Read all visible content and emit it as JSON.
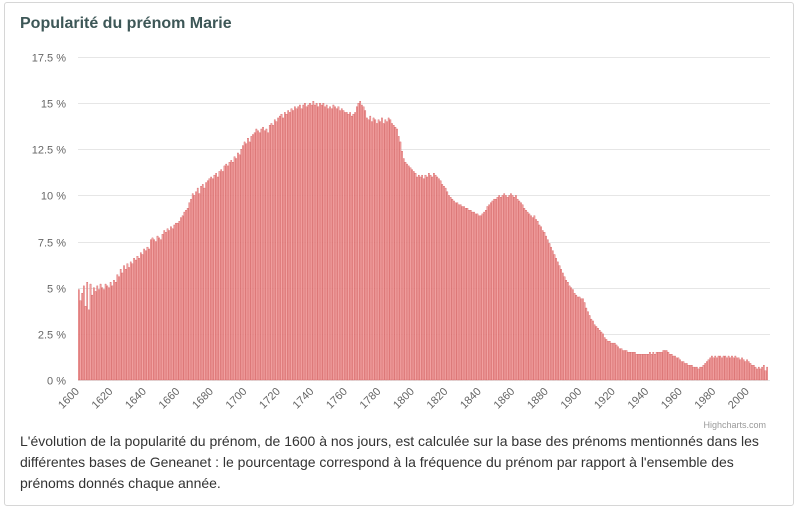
{
  "credits": "Highcharts.com",
  "caption": "L'évolution de la popularité du prénom, de 1600 à nos jours, est calculée sur la base des prénoms mentionnés dans les différentes bases de Geneanet : le pourcentage correspond à la fréquence du prénom par rapport à l'ensemble des prénoms donnés chaque année.",
  "colors": {
    "bar_fill": "#f2a3a3",
    "bar_border": "#cc4a4a",
    "gridline": "#e6e6e6"
  },
  "chart_data": {
    "type": "bar",
    "title": "Popularité du prénom Marie",
    "xlim": [
      1600,
      2011
    ],
    "ylim": [
      0,
      17.5
    ],
    "grid": "horizontal",
    "legend": "none",
    "yticks": [
      {
        "value": 0,
        "label": "0 %"
      },
      {
        "value": 2.5,
        "label": "2.5 %"
      },
      {
        "value": 5,
        "label": "5 %"
      },
      {
        "value": 7.5,
        "label": "7.5 %"
      },
      {
        "value": 10,
        "label": "10 %"
      },
      {
        "value": 12.5,
        "label": "12.5 %"
      },
      {
        "value": 15,
        "label": "15 %"
      },
      {
        "value": 17.5,
        "label": "17.5 %"
      }
    ],
    "xticks": [
      {
        "value": 1600,
        "label": "1600"
      },
      {
        "value": 1620,
        "label": "1620"
      },
      {
        "value": 1640,
        "label": "1640"
      },
      {
        "value": 1660,
        "label": "1660"
      },
      {
        "value": 1680,
        "label": "1680"
      },
      {
        "value": 1700,
        "label": "1700"
      },
      {
        "value": 1720,
        "label": "1720"
      },
      {
        "value": 1740,
        "label": "1740"
      },
      {
        "value": 1760,
        "label": "1760"
      },
      {
        "value": 1780,
        "label": "1780"
      },
      {
        "value": 1800,
        "label": "1800"
      },
      {
        "value": 1820,
        "label": "1820"
      },
      {
        "value": 1840,
        "label": "1840"
      },
      {
        "value": 1860,
        "label": "1860"
      },
      {
        "value": 1880,
        "label": "1880"
      },
      {
        "value": 1900,
        "label": "1900"
      },
      {
        "value": 1920,
        "label": "1920"
      },
      {
        "value": 1940,
        "label": "1940"
      },
      {
        "value": 1960,
        "label": "1960"
      },
      {
        "value": 1980,
        "label": "1980"
      },
      {
        "value": 2000,
        "label": "2000"
      }
    ],
    "x": [
      1600,
      1601,
      1602,
      1603,
      1604,
      1605,
      1606,
      1607,
      1608,
      1609,
      1610,
      1611,
      1612,
      1613,
      1614,
      1615,
      1616,
      1617,
      1618,
      1619,
      1620,
      1621,
      1622,
      1623,
      1624,
      1625,
      1626,
      1627,
      1628,
      1629,
      1630,
      1631,
      1632,
      1633,
      1634,
      1635,
      1636,
      1637,
      1638,
      1639,
      1640,
      1641,
      1642,
      1643,
      1644,
      1645,
      1646,
      1647,
      1648,
      1649,
      1650,
      1651,
      1652,
      1653,
      1654,
      1655,
      1656,
      1657,
      1658,
      1659,
      1660,
      1661,
      1662,
      1663,
      1664,
      1665,
      1666,
      1667,
      1668,
      1669,
      1670,
      1671,
      1672,
      1673,
      1674,
      1675,
      1676,
      1677,
      1678,
      1679,
      1680,
      1681,
      1682,
      1683,
      1684,
      1685,
      1686,
      1687,
      1688,
      1689,
      1690,
      1691,
      1692,
      1693,
      1694,
      1695,
      1696,
      1697,
      1698,
      1699,
      1700,
      1701,
      1702,
      1703,
      1704,
      1705,
      1706,
      1707,
      1708,
      1709,
      1710,
      1711,
      1712,
      1713,
      1714,
      1715,
      1716,
      1717,
      1718,
      1719,
      1720,
      1721,
      1722,
      1723,
      1724,
      1725,
      1726,
      1727,
      1728,
      1729,
      1730,
      1731,
      1732,
      1733,
      1734,
      1735,
      1736,
      1737,
      1738,
      1739,
      1740,
      1741,
      1742,
      1743,
      1744,
      1745,
      1746,
      1747,
      1748,
      1749,
      1750,
      1751,
      1752,
      1753,
      1754,
      1755,
      1756,
      1757,
      1758,
      1759,
      1760,
      1761,
      1762,
      1763,
      1764,
      1765,
      1766,
      1767,
      1768,
      1769,
      1770,
      1771,
      1772,
      1773,
      1774,
      1775,
      1776,
      1777,
      1778,
      1779,
      1780,
      1781,
      1782,
      1783,
      1784,
      1785,
      1786,
      1787,
      1788,
      1789,
      1790,
      1791,
      1792,
      1793,
      1794,
      1795,
      1796,
      1797,
      1798,
      1799,
      1800,
      1801,
      1802,
      1803,
      1804,
      1805,
      1806,
      1807,
      1808,
      1809,
      1810,
      1811,
      1812,
      1813,
      1814,
      1815,
      1816,
      1817,
      1818,
      1819,
      1820,
      1821,
      1822,
      1823,
      1824,
      1825,
      1826,
      1827,
      1828,
      1829,
      1830,
      1831,
      1832,
      1833,
      1834,
      1835,
      1836,
      1837,
      1838,
      1839,
      1840,
      1841,
      1842,
      1843,
      1844,
      1845,
      1846,
      1847,
      1848,
      1849,
      1850,
      1851,
      1852,
      1853,
      1854,
      1855,
      1856,
      1857,
      1858,
      1859,
      1860,
      1861,
      1862,
      1863,
      1864,
      1865,
      1866,
      1867,
      1868,
      1869,
      1870,
      1871,
      1872,
      1873,
      1874,
      1875,
      1876,
      1877,
      1878,
      1879,
      1880,
      1881,
      1882,
      1883,
      1884,
      1885,
      1886,
      1887,
      1888,
      1889,
      1890,
      1891,
      1892,
      1893,
      1894,
      1895,
      1896,
      1897,
      1898,
      1899,
      1900,
      1901,
      1902,
      1903,
      1904,
      1905,
      1906,
      1907,
      1908,
      1909,
      1910,
      1911,
      1912,
      1913,
      1914,
      1915,
      1916,
      1917,
      1918,
      1919,
      1920,
      1921,
      1922,
      1923,
      1924,
      1925,
      1926,
      1927,
      1928,
      1929,
      1930,
      1931,
      1932,
      1933,
      1934,
      1935,
      1936,
      1937,
      1938,
      1939,
      1940,
      1941,
      1942,
      1943,
      1944,
      1945,
      1946,
      1947,
      1948,
      1949,
      1950,
      1951,
      1952,
      1953,
      1954,
      1955,
      1956,
      1957,
      1958,
      1959,
      1960,
      1961,
      1962,
      1963,
      1964,
      1965,
      1966,
      1967,
      1968,
      1969,
      1970,
      1971,
      1972,
      1973,
      1974,
      1975,
      1976,
      1977,
      1978,
      1979,
      1980,
      1981,
      1982,
      1983,
      1984,
      1985,
      1986,
      1987,
      1988,
      1989,
      1990,
      1991,
      1992,
      1993,
      1994,
      1995,
      1996,
      1997,
      1998,
      1999,
      2000,
      2001,
      2002,
      2003,
      2004,
      2005,
      2006,
      2007,
      2008,
      2009,
      2010,
      2011
    ],
    "values": [
      4.9,
      4.3,
      4.7,
      5.1,
      4.0,
      5.3,
      3.8,
      5.2,
      4.6,
      5.0,
      4.8,
      5.1,
      4.9,
      5.2,
      5.0,
      4.9,
      5.2,
      5.1,
      5.0,
      5.3,
      5.1,
      5.4,
      5.3,
      5.7,
      5.6,
      6.0,
      5.8,
      6.2,
      6.0,
      6.3,
      6.1,
      6.4,
      6.3,
      6.6,
      6.5,
      6.7,
      6.6,
      6.9,
      6.8,
      7.1,
      7.0,
      7.2,
      7.1,
      7.6,
      7.7,
      7.6,
      7.5,
      7.8,
      7.7,
      7.6,
      7.9,
      8.1,
      8.0,
      8.2,
      8.1,
      8.3,
      8.2,
      8.4,
      8.5,
      8.5,
      8.6,
      8.8,
      8.9,
      9.1,
      9.2,
      9.3,
      9.6,
      9.8,
      10.1,
      10.0,
      10.2,
      10.4,
      10.1,
      10.5,
      10.6,
      10.4,
      10.7,
      10.8,
      10.9,
      11.0,
      10.9,
      11.1,
      11.2,
      11.0,
      11.3,
      11.4,
      11.3,
      11.6,
      11.7,
      11.6,
      11.8,
      11.9,
      11.8,
      12.1,
      12.0,
      12.3,
      12.2,
      12.5,
      12.7,
      12.9,
      12.8,
      13.1,
      12.9,
      13.2,
      13.3,
      13.4,
      13.6,
      13.5,
      13.4,
      13.6,
      13.7,
      13.5,
      13.6,
      13.4,
      13.8,
      13.9,
      13.8,
      14.1,
      14.0,
      14.2,
      14.3,
      14.4,
      14.2,
      14.5,
      14.4,
      14.6,
      14.5,
      14.7,
      14.6,
      14.8,
      14.7,
      14.8,
      14.9,
      14.7,
      14.9,
      15.0,
      14.8,
      14.9,
      15.0,
      14.9,
      15.1,
      14.9,
      15.0,
      14.8,
      15.0,
      14.9,
      15.0,
      14.8,
      14.9,
      14.7,
      14.8,
      14.7,
      14.9,
      14.8,
      14.7,
      14.8,
      14.6,
      14.7,
      14.6,
      14.5,
      14.5,
      14.4,
      14.5,
      14.3,
      14.4,
      14.5,
      14.8,
      15.0,
      15.1,
      14.9,
      14.8,
      14.6,
      14.2,
      14.1,
      14.3,
      14.0,
      14.2,
      14.1,
      13.9,
      14.1,
      14.0,
      14.2,
      13.9,
      14.1,
      14.0,
      14.2,
      14.1,
      13.9,
      13.8,
      13.7,
      13.6,
      13.2,
      12.9,
      12.4,
      12.0,
      11.8,
      11.7,
      11.6,
      11.5,
      11.4,
      11.3,
      11.2,
      11.0,
      11.1,
      11.0,
      11.1,
      10.9,
      11.1,
      11.0,
      11.2,
      11.1,
      11.0,
      11.2,
      11.1,
      11.0,
      10.9,
      10.8,
      10.6,
      10.5,
      10.4,
      10.2,
      10.0,
      9.9,
      9.8,
      9.7,
      9.6,
      9.6,
      9.5,
      9.5,
      9.4,
      9.4,
      9.3,
      9.3,
      9.2,
      9.2,
      9.1,
      9.1,
      9.0,
      9.0,
      8.9,
      8.9,
      9.0,
      9.1,
      9.2,
      9.4,
      9.5,
      9.6,
      9.7,
      9.8,
      9.8,
      9.9,
      10.0,
      9.9,
      10.0,
      10.1,
      10.0,
      9.9,
      10.0,
      10.1,
      10.0,
      9.9,
      10.0,
      9.8,
      9.7,
      9.6,
      9.5,
      9.3,
      9.2,
      9.1,
      9.0,
      8.9,
      8.8,
      8.9,
      8.7,
      8.6,
      8.4,
      8.3,
      8.1,
      8.0,
      7.8,
      7.6,
      7.4,
      7.2,
      7.0,
      6.8,
      6.6,
      6.4,
      6.2,
      6.0,
      5.8,
      5.6,
      5.4,
      5.3,
      5.1,
      5.0,
      4.9,
      4.7,
      4.6,
      4.5,
      4.5,
      4.4,
      4.4,
      4.2,
      3.9,
      3.7,
      3.5,
      3.3,
      3.2,
      3.0,
      2.9,
      2.8,
      2.7,
      2.6,
      2.5,
      2.3,
      2.2,
      2.1,
      2.1,
      2.0,
      2.0,
      2.0,
      1.9,
      1.8,
      1.7,
      1.7,
      1.6,
      1.6,
      1.6,
      1.5,
      1.5,
      1.5,
      1.5,
      1.5,
      1.4,
      1.4,
      1.4,
      1.4,
      1.4,
      1.4,
      1.4,
      1.4,
      1.5,
      1.4,
      1.5,
      1.4,
      1.5,
      1.5,
      1.5,
      1.5,
      1.6,
      1.6,
      1.6,
      1.5,
      1.4,
      1.4,
      1.3,
      1.3,
      1.2,
      1.2,
      1.1,
      1.0,
      1.0,
      0.9,
      0.9,
      0.8,
      0.8,
      0.8,
      0.7,
      0.7,
      0.7,
      0.6,
      0.7,
      0.7,
      0.8,
      0.9,
      1.0,
      1.1,
      1.2,
      1.3,
      1.2,
      1.3,
      1.2,
      1.3,
      1.3,
      1.2,
      1.3,
      1.3,
      1.2,
      1.3,
      1.2,
      1.3,
      1.2,
      1.3,
      1.2,
      1.2,
      1.1,
      1.2,
      1.1,
      1.0,
      1.1,
      1.0,
      0.9,
      0.8,
      0.8,
      0.7,
      0.6,
      0.7,
      0.6,
      0.7,
      0.8,
      0.5,
      0.7
    ]
  }
}
